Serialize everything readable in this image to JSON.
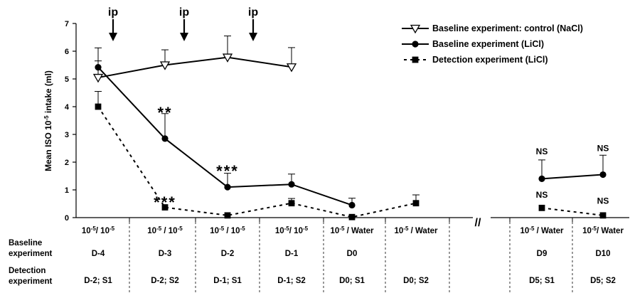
{
  "chart_data": {
    "type": "line",
    "title": "",
    "ylabel": "Mean ISO 10-5 intake (ml)",
    "ylabel_parts": {
      "pre": "Mean ISO 10",
      "exp": "-5",
      "post": " intake (ml)"
    },
    "ylim": [
      0,
      7
    ],
    "yticks": [
      "0",
      "1",
      "2",
      "3",
      "4",
      "5",
      "6",
      "7"
    ],
    "x_positions": [
      "1",
      "2",
      "3",
      "4",
      "5",
      "6",
      "7",
      "8",
      "9"
    ],
    "axis_break_label": "//",
    "series": [
      {
        "name": "Baseline experiment: control (NaCl)",
        "marker": "triangle-down-open",
        "line": "solid",
        "x": [
          1,
          2,
          3,
          4
        ],
        "y": [
          5.05,
          5.5,
          5.78,
          5.43
        ],
        "err": [
          0.6,
          0.55,
          0.77,
          0.7
        ]
      },
      {
        "name": "Baseline experiment (LiCl)",
        "marker": "circle-filled",
        "line": "solid",
        "segments": [
          [
            1,
            5
          ],
          [
            8,
            9
          ]
        ],
        "x": [
          1,
          2,
          3,
          4,
          5,
          8,
          9
        ],
        "y": [
          5.42,
          2.85,
          1.1,
          1.2,
          0.45,
          1.4,
          1.55
        ],
        "err": [
          0.7,
          0.9,
          0.5,
          0.37,
          0.25,
          0.68,
          0.7
        ]
      },
      {
        "name": "Detection experiment (LiCl)",
        "marker": "square-filled",
        "line": "dashed",
        "segments": [
          [
            1,
            6
          ],
          [
            8,
            9
          ]
        ],
        "x": [
          1,
          2,
          3,
          4,
          5,
          6,
          8,
          9
        ],
        "y": [
          4.0,
          0.37,
          0.08,
          0.52,
          0.02,
          0.52,
          0.35,
          0.08
        ],
        "err": [
          0.55,
          0.0,
          0.0,
          0.17,
          0.0,
          0.3,
          0.0,
          0.0
        ]
      }
    ],
    "ip_arrows": [
      {
        "label": "ip",
        "x": 1.5
      },
      {
        "label": "ip",
        "x": 2.5
      },
      {
        "label": "ip",
        "x": 3.5
      }
    ],
    "significance": [
      {
        "text": "**",
        "x": 2,
        "y": 3.95
      },
      {
        "text": "***",
        "x": 3,
        "y": 1.85
      },
      {
        "text": "***",
        "x": 2,
        "y": 0.72
      },
      {
        "text": "NS",
        "x": 8,
        "y": 2.28
      },
      {
        "text": "NS",
        "x": 9,
        "y": 2.4
      },
      {
        "text": "NS",
        "x": 8,
        "y": 0.72
      },
      {
        "text": "NS",
        "x": 9,
        "y": 0.5
      }
    ],
    "legend_position": "top-right"
  },
  "table": {
    "row_labels": [
      {
        "line1": "Baseline",
        "line2": "experiment"
      },
      {
        "line1": "Detection",
        "line2": "experiment"
      }
    ],
    "columns": [
      {
        "solution": {
          "pre": "10",
          "exp": "-5",
          "mid": "/ 10",
          "exp2": "-5",
          "post": ""
        },
        "baseline": "D-4",
        "detection": "D-2; S1"
      },
      {
        "solution": {
          "pre": "10",
          "exp": "-5",
          "mid": " / 10",
          "exp2": "-5",
          "post": ""
        },
        "baseline": "D-3",
        "detection": "D-2; S2"
      },
      {
        "solution": {
          "pre": "10",
          "exp": "-5",
          "mid": " / 10",
          "exp2": "-5",
          "post": ""
        },
        "baseline": "D-2",
        "detection": "D-1; S1"
      },
      {
        "solution": {
          "pre": "10",
          "exp": "-5",
          "mid": "/ 10",
          "exp2": "-5",
          "post": ""
        },
        "baseline": "D-1",
        "detection": "D-1; S2"
      },
      {
        "solution": {
          "pre": "10",
          "exp": "-5",
          "mid": " / Water",
          "exp2": "",
          "post": ""
        },
        "baseline": "D0",
        "detection": "D0; S1"
      },
      {
        "solution": {
          "pre": "10",
          "exp": "-5",
          "mid": " / Water",
          "exp2": "",
          "post": ""
        },
        "baseline": "",
        "detection": "D0; S2"
      },
      {
        "solution": null,
        "baseline": "",
        "detection": ""
      },
      {
        "solution": {
          "pre": "10",
          "exp": "-5",
          "mid": " / Water",
          "exp2": "",
          "post": ""
        },
        "baseline": "D9",
        "detection": "D5; S1"
      },
      {
        "solution": {
          "pre": "10",
          "exp": "-5",
          "mid": "/ Water",
          "exp2": "",
          "post": ""
        },
        "baseline": "D10",
        "detection": "D5; S2"
      }
    ]
  }
}
